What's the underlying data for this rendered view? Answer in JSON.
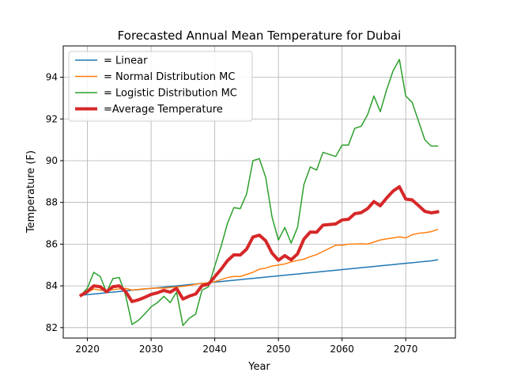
{
  "chart_data": {
    "type": "line",
    "title": "Forecasted Annual Mean Temperature for Dubai",
    "xlabel": "Year",
    "ylabel": "Temperature (F)",
    "xlim": [
      2016.2,
      2077.8
    ],
    "ylim": [
      81.5,
      95.5
    ],
    "xticks": [
      2020,
      2030,
      2040,
      2050,
      2060,
      2070
    ],
    "yticks": [
      82,
      84,
      86,
      88,
      90,
      92,
      94
    ],
    "grid": true,
    "legend_position": "upper-left",
    "x": [
      2019,
      2020,
      2021,
      2022,
      2023,
      2024,
      2025,
      2026,
      2027,
      2028,
      2029,
      2030,
      2031,
      2032,
      2033,
      2034,
      2035,
      2036,
      2037,
      2038,
      2039,
      2040,
      2041,
      2042,
      2043,
      2044,
      2045,
      2046,
      2047,
      2048,
      2049,
      2050,
      2051,
      2052,
      2053,
      2054,
      2055,
      2056,
      2057,
      2058,
      2059,
      2060,
      2061,
      2062,
      2063,
      2064,
      2065,
      2066,
      2067,
      2068,
      2069,
      2070,
      2071,
      2072,
      2073,
      2074,
      2075
    ],
    "series": [
      {
        "name": "= Linear",
        "color": "#1f77b4",
        "width": 1.5,
        "values": [
          83.55,
          83.58,
          83.61,
          83.64,
          83.67,
          83.7,
          83.73,
          83.76,
          83.79,
          83.82,
          83.85,
          83.88,
          83.91,
          83.94,
          83.97,
          84.0,
          84.03,
          84.06,
          84.09,
          84.12,
          84.15,
          84.18,
          84.21,
          84.24,
          84.27,
          84.3,
          84.33,
          84.36,
          84.39,
          84.42,
          84.45,
          84.48,
          84.51,
          84.54,
          84.57,
          84.6,
          84.63,
          84.66,
          84.69,
          84.72,
          84.75,
          84.78,
          84.81,
          84.84,
          84.87,
          84.9,
          84.93,
          84.96,
          84.99,
          85.02,
          85.05,
          85.08,
          85.11,
          85.14,
          85.17,
          85.2,
          85.25
        ]
      },
      {
        "name": "= Normal Distribution MC",
        "color": "#ff7f0e",
        "width": 1.5,
        "values": [
          83.55,
          83.7,
          83.85,
          83.8,
          83.78,
          83.82,
          83.85,
          83.88,
          83.8,
          83.83,
          83.86,
          83.88,
          83.9,
          83.89,
          83.92,
          83.95,
          83.98,
          84.02,
          84.08,
          84.12,
          84.15,
          84.2,
          84.3,
          84.4,
          84.45,
          84.45,
          84.55,
          84.65,
          84.8,
          84.85,
          84.95,
          85.0,
          85.05,
          85.15,
          85.22,
          85.28,
          85.4,
          85.5,
          85.65,
          85.8,
          85.95,
          85.95,
          86.0,
          86.0,
          86.02,
          86.0,
          86.1,
          86.2,
          86.25,
          86.3,
          86.35,
          86.3,
          86.45,
          86.52,
          86.55,
          86.6,
          86.7
        ]
      },
      {
        "name": "= Logistic Distribution MC",
        "color": "#2ca02c",
        "width": 1.5,
        "values": [
          83.55,
          83.9,
          84.65,
          84.45,
          83.7,
          84.35,
          84.4,
          83.55,
          82.15,
          82.35,
          82.65,
          83.0,
          83.2,
          83.5,
          83.2,
          83.7,
          82.1,
          82.45,
          82.65,
          83.8,
          83.95,
          84.95,
          85.9,
          87.0,
          87.75,
          87.7,
          88.4,
          90.0,
          90.1,
          89.2,
          87.3,
          86.2,
          86.8,
          86.05,
          86.8,
          88.85,
          89.7,
          89.55,
          90.4,
          90.3,
          90.2,
          90.75,
          90.75,
          91.55,
          91.65,
          92.2,
          93.1,
          92.35,
          93.4,
          94.3,
          94.85,
          93.1,
          92.8,
          91.9,
          91.0,
          90.7,
          90.7
        ]
      },
      {
        "name": "=Average Temperature",
        "color": "#d62728",
        "width": 4,
        "values": [
          83.55,
          83.73,
          84.0,
          83.96,
          83.72,
          83.96,
          84.0,
          83.73,
          83.25,
          83.33,
          83.45,
          83.59,
          83.67,
          83.78,
          83.7,
          83.88,
          83.37,
          83.51,
          83.61,
          84.01,
          84.08,
          84.44,
          84.8,
          85.21,
          85.49,
          85.48,
          85.76,
          86.34,
          86.43,
          86.16,
          85.57,
          85.23,
          85.45,
          85.25,
          85.53,
          86.24,
          86.58,
          86.57,
          86.91,
          86.94,
          86.97,
          87.16,
          87.19,
          87.46,
          87.51,
          87.7,
          88.04,
          87.84,
          88.21,
          88.54,
          88.75,
          88.16,
          88.12,
          87.85,
          87.57,
          87.5,
          87.55
        ]
      }
    ]
  }
}
